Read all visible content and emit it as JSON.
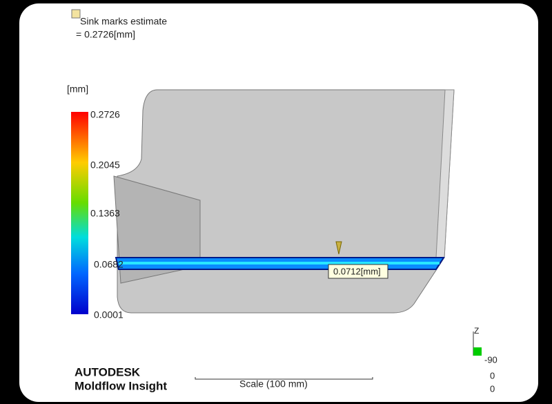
{
  "header": {
    "title": "Sink marks estimate",
    "value": "= 0.2726[mm]"
  },
  "legend": {
    "unit": "[mm]",
    "labels": [
      "0.2726",
      "0.2045",
      "0.1363",
      "0.0682",
      "0.0001"
    ]
  },
  "probe": {
    "label": "0.0712[mm]"
  },
  "branding": {
    "company": "AUTODESK",
    "product": "Moldflow Insight"
  },
  "scale": {
    "label": "Scale (100 mm)"
  },
  "axes": {
    "axis": "Z",
    "angles": [
      "-90",
      "0",
      "0"
    ]
  }
}
